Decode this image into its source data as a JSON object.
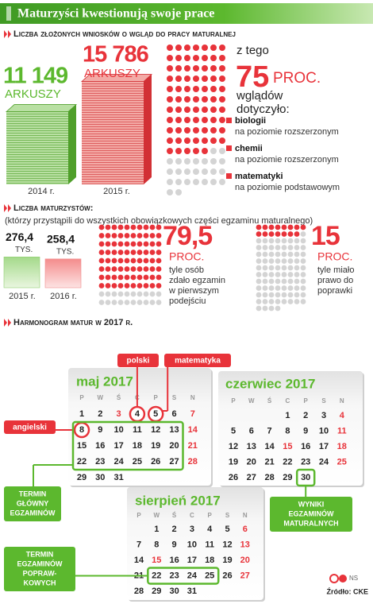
{
  "header": {
    "title": "Maturzyści kwestionują swoje prace"
  },
  "applications": {
    "title": "Liczba złożonych wniosków o wgląd do pracy maturalnej",
    "stacks": [
      {
        "value": 11149,
        "label": "11 149",
        "unit": "ARKUSZY",
        "year": "2014 r.",
        "color": "#5cb82e"
      },
      {
        "value": 15786,
        "label": "15 786",
        "unit": "ARKUSZY",
        "year": "2015 r.",
        "color": "#e8333a"
      }
    ],
    "share": {
      "intro": "z tego",
      "value": 75,
      "unit": "PROC.",
      "text": [
        "wglądów",
        "dotyczyło:"
      ],
      "items": [
        {
          "subject": "biologii",
          "level": "na poziomie rozszerzonym"
        },
        {
          "subject": "chemii",
          "level": "na poziomie rozszerzonym"
        },
        {
          "subject": "matematyki",
          "level": "na poziomie podstawowym"
        }
      ]
    }
  },
  "graduates": {
    "title": "Liczba maturzystów:",
    "note": "(którzy przystąpili do wszystkich obowiązkowych części egzaminu maturalnego)",
    "bars": [
      {
        "value": 276.4,
        "label": "276,4",
        "unit": "TYS.",
        "year": "2015 r."
      },
      {
        "value": 258.4,
        "label": "258,4",
        "unit": "TYS.",
        "year": "2016 r."
      }
    ],
    "stats": [
      {
        "value": 79.5,
        "label": "79,5",
        "unit": "PROC.",
        "text": [
          "tyle osób",
          "zdało egzamin",
          "w pierwszym",
          "podejściu"
        ]
      },
      {
        "value": 15,
        "label": "15",
        "unit": "PROC.",
        "text": [
          "tyle miało",
          "prawo do",
          "poprawki"
        ]
      }
    ]
  },
  "schedule": {
    "title": "Harmonogram matur w 2017 r.",
    "weekdays": [
      "P",
      "W",
      "Ś",
      "C",
      "P",
      "S",
      "N"
    ],
    "months": [
      {
        "name": "maj 2017",
        "weeks": [
          [
            1,
            2,
            3,
            4,
            5,
            6,
            7
          ],
          [
            8,
            9,
            10,
            11,
            12,
            13,
            14
          ],
          [
            15,
            16,
            17,
            18,
            19,
            20,
            21
          ],
          [
            22,
            23,
            24,
            25,
            26,
            27,
            28
          ],
          [
            29,
            30,
            31,
            null,
            null,
            null,
            null
          ]
        ]
      },
      {
        "name": "czerwiec 2017",
        "weeks": [
          [
            null,
            null,
            null,
            1,
            2,
            3,
            4
          ],
          [
            5,
            6,
            7,
            8,
            9,
            10,
            11
          ],
          [
            12,
            13,
            14,
            15,
            16,
            17,
            18
          ],
          [
            19,
            20,
            21,
            22,
            23,
            24,
            25
          ],
          [
            26,
            27,
            28,
            29,
            30,
            null,
            null
          ]
        ]
      },
      {
        "name": "sierpień 2017",
        "weeks": [
          [
            null,
            1,
            2,
            3,
            4,
            5,
            6
          ],
          [
            7,
            8,
            9,
            10,
            11,
            12,
            13
          ],
          [
            14,
            15,
            16,
            17,
            18,
            19,
            20
          ],
          [
            21,
            22,
            23,
            24,
            25,
            26,
            27
          ],
          [
            28,
            29,
            30,
            31,
            null,
            null,
            null
          ]
        ]
      }
    ],
    "exams": [
      "polski",
      "matematyka",
      "angielski"
    ],
    "notes": [
      [
        "TERMIN",
        "GŁÓWNY",
        "EGZAMINÓW"
      ],
      [
        "WYNIKI",
        "EGZAMINÓW",
        "MATURALNYCH"
      ],
      [
        "TERMIN",
        "EGZAMINÓW",
        "POPRAW-",
        "KOWYCH"
      ]
    ]
  },
  "footer": {
    "credit": "NS",
    "source": "Źródło: CKE"
  }
}
